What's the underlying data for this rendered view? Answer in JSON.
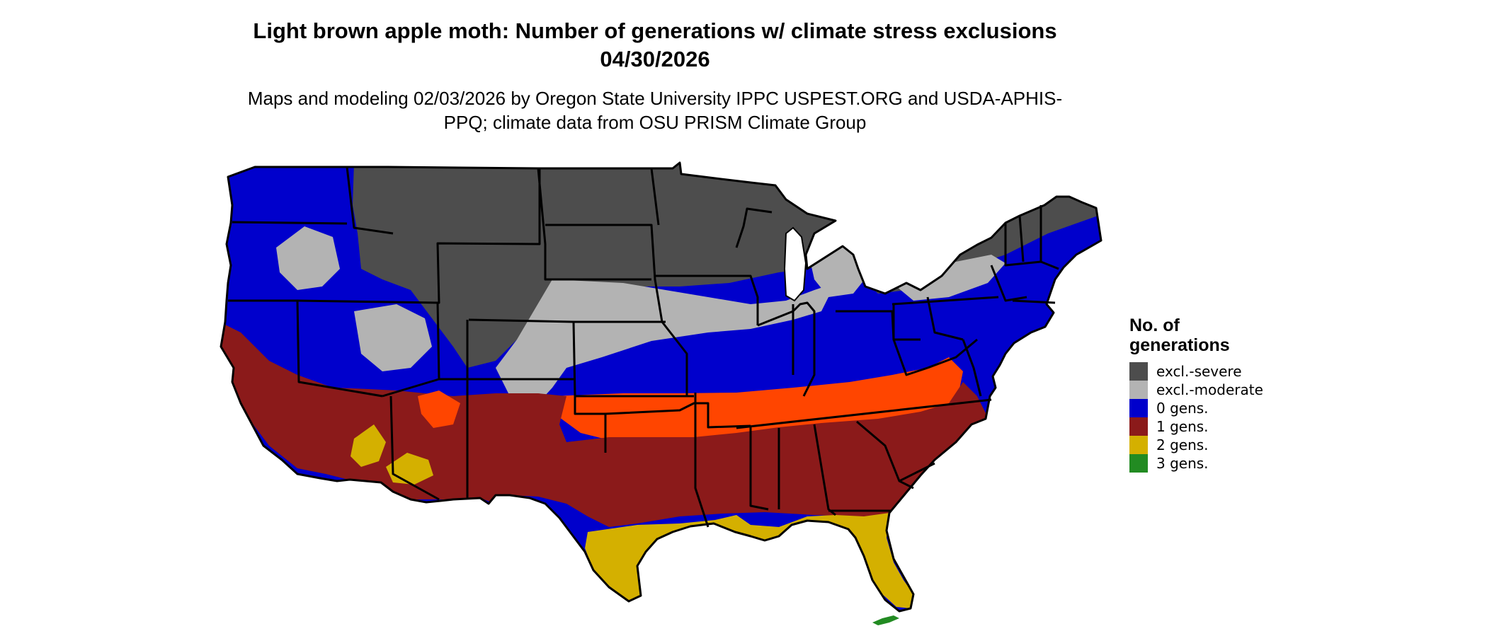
{
  "title": "Light brown apple moth: Number of generations w/ climate stress exclusions 04/30/2026",
  "subtitle": "Maps and modeling 02/03/2026 by Oregon State University IPPC USPEST.ORG and USDA-APHIS-PPQ; climate data from OSU PRISM Climate Group",
  "legend": {
    "title": "No. of generations",
    "items": [
      {
        "label": "excl.-severe",
        "color": "#4d4d4d"
      },
      {
        "label": "excl.-moderate",
        "color": "#b3b3b3"
      },
      {
        "label": "0 gens.",
        "color": "#0000cc"
      },
      {
        "label": "1 gens.",
        "color": "#8b1a1a"
      },
      {
        "label": "2 gens.",
        "color": "#d4b000"
      },
      {
        "label": "3 gens.",
        "color": "#228b22"
      }
    ]
  },
  "map": {
    "region": "conterminous United States",
    "zone_colors": {
      "excl_severe": "#4d4d4d",
      "excl_moderate": "#b3b3b3",
      "gens_0": "#0000cc",
      "gens_1": "#8b1a1a",
      "gens_1_high": "#ff4500",
      "gens_2": "#d4b000",
      "gens_3": "#228b22"
    }
  }
}
